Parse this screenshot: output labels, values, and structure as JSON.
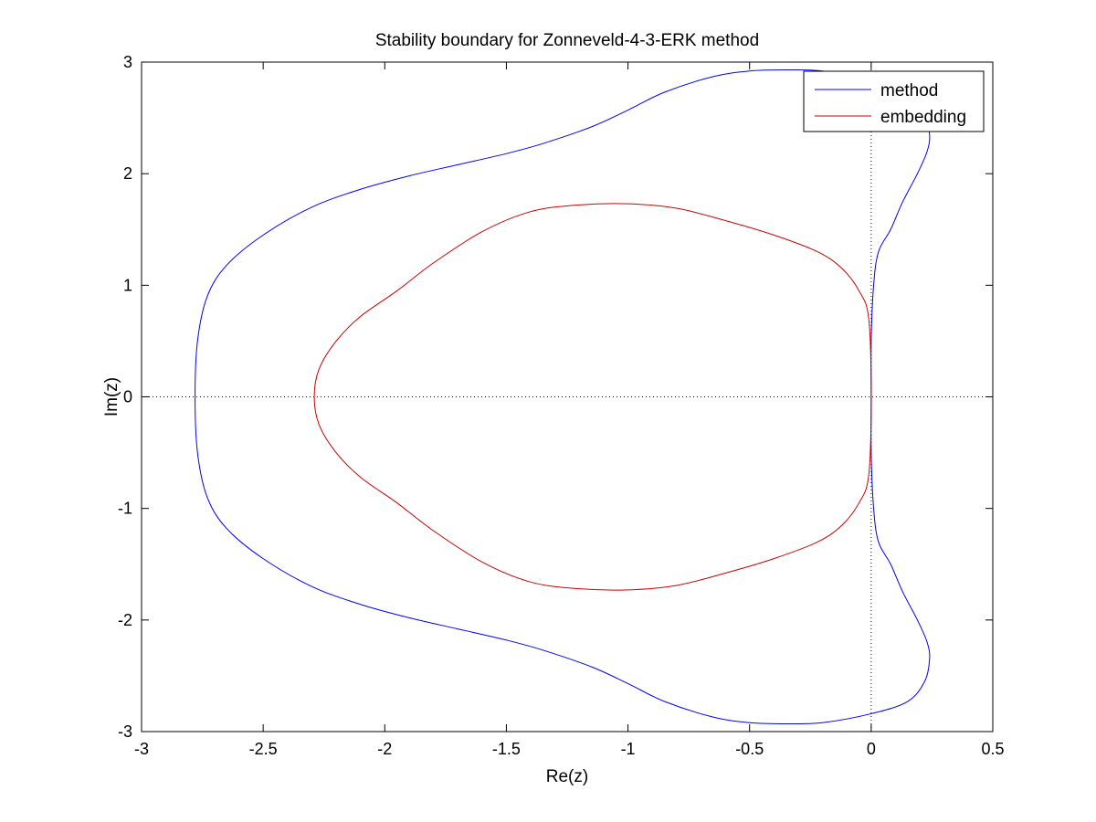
{
  "chart_data": {
    "type": "line",
    "title": "Stability boundary for Zonneveld-4-3-ERK method",
    "xlabel": "Re(z)",
    "ylabel": "Im(z)",
    "xlim": [
      -3,
      0.5
    ],
    "ylim": [
      -3,
      3
    ],
    "xticks": [
      -3,
      -2.5,
      -2,
      -1.5,
      -1,
      -0.5,
      0,
      0.5
    ],
    "xtick_labels": [
      "-3",
      "-2.5",
      "-2",
      "-1.5",
      "-1",
      "-0.5",
      "0",
      "0.5"
    ],
    "yticks": [
      -3,
      -2,
      -1,
      0,
      1,
      2,
      3
    ],
    "ytick_labels": [
      "-3",
      "-2",
      "-1",
      "0",
      "1",
      "2",
      "3"
    ],
    "grid": false,
    "reference_lines": [
      {
        "orientation": "horizontal",
        "value": 0,
        "style": "dotted"
      },
      {
        "orientation": "vertical",
        "value": 0,
        "style": "dotted"
      }
    ],
    "legend": {
      "placement": "top-right"
    },
    "series": [
      {
        "name": "method",
        "color": "#0000ff",
        "symmetric_about_real_axis": true,
        "x": [
          0.0,
          0.0,
          0.01,
          0.03,
          0.08,
          0.13,
          0.19,
          0.23,
          0.24,
          0.22,
          0.15,
          0.0,
          -0.2,
          -0.35,
          -0.5,
          -0.65,
          -0.85,
          -1.0,
          -1.15,
          -1.35,
          -1.5,
          -1.7,
          -1.9,
          -2.1,
          -2.3,
          -2.5,
          -2.65,
          -2.73,
          -2.77,
          -2.78
        ],
        "y": [
          0.0,
          0.5,
          1.0,
          1.3,
          1.5,
          1.75,
          2.0,
          2.2,
          2.35,
          2.55,
          2.73,
          2.84,
          2.92,
          2.93,
          2.92,
          2.87,
          2.73,
          2.57,
          2.42,
          2.27,
          2.18,
          2.08,
          1.98,
          1.86,
          1.7,
          1.45,
          1.18,
          0.9,
          0.5,
          0.0
        ]
      },
      {
        "name": "embedding",
        "color": "#cc0000",
        "symmetric_about_real_axis": true,
        "x": [
          0.0,
          -0.01,
          -0.05,
          -0.12,
          -0.22,
          -0.4,
          -0.6,
          -0.8,
          -1.0,
          -1.2,
          -1.4,
          -1.6,
          -1.8,
          -1.95,
          -2.1,
          -2.2,
          -2.27,
          -2.29
        ],
        "y": [
          0.0,
          0.7,
          0.95,
          1.15,
          1.3,
          1.45,
          1.58,
          1.69,
          1.73,
          1.72,
          1.66,
          1.48,
          1.2,
          0.95,
          0.72,
          0.5,
          0.25,
          0.0
        ]
      }
    ]
  }
}
